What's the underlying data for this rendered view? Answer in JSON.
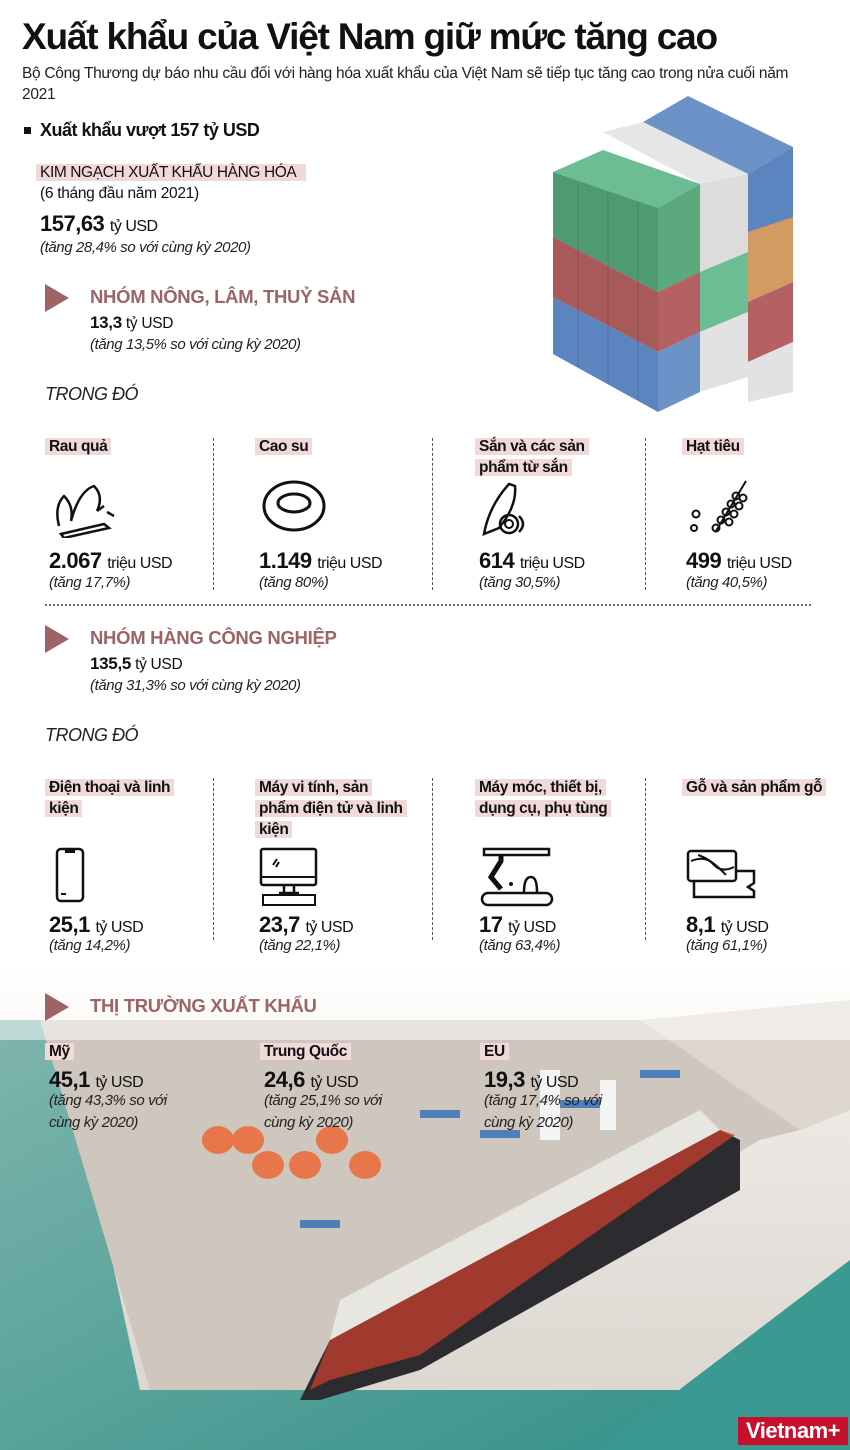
{
  "header": {
    "title": "Xuất khẩu của Việt Nam giữ mức tăng cao",
    "subtitle": "Bộ Công Thương dự báo nhu cầu đối với hàng hóa xuất khẩu của Việt Nam sẽ tiếp tục tăng cao trong nửa cuối năm 2021"
  },
  "overview": {
    "heading": "Xuất khẩu vượt 157 tỷ USD",
    "label": "KIM NGẠCH XUẤT KHẨU HÀNG HÓA",
    "period": "(6 tháng đầu năm 2021)",
    "value": "157,63",
    "unit": "tỷ USD",
    "growth": "(tăng 28,4% so với cùng kỳ 2020)"
  },
  "agri": {
    "heading": "NHÓM NÔNG, LÂM, THUỶ SẢN",
    "value": "13,3",
    "unit": "tỷ USD",
    "growth": "(tăng 13,5% so với cùng kỳ 2020)",
    "trong_do": "TRONG ĐÓ",
    "items": [
      {
        "label": "Rau quả",
        "value": "2.067",
        "unit": "triệu USD",
        "growth": "(tăng 17,7%)",
        "icon": "vegetables-icon"
      },
      {
        "label": "Cao su",
        "value": "1.149",
        "unit": "triệu USD",
        "growth": "(tăng 80%)",
        "icon": "rubber-tire-icon"
      },
      {
        "label": "Sắn và các sản phẩm từ sắn",
        "value": "614",
        "unit": "triệu USD",
        "growth": "(tăng 30,5%)",
        "icon": "cassava-icon"
      },
      {
        "label": "Hạt tiêu",
        "value": "499",
        "unit": "triệu USD",
        "growth": "(tăng 40,5%)",
        "icon": "pepper-icon"
      }
    ]
  },
  "industry": {
    "heading": "NHÓM HÀNG CÔNG NGHIỆP",
    "value": "135,5",
    "unit": "tỷ USD",
    "growth": "(tăng 31,3% so với cùng kỳ 2020)",
    "trong_do": "TRONG ĐÓ",
    "items": [
      {
        "label": "Điện thoại và linh kiện",
        "value": "25,1",
        "unit": "tỷ USD",
        "growth": "(tăng 14,2%)",
        "icon": "smartphone-icon"
      },
      {
        "label": "Máy vi tính, sản phẩm điện tử và linh kiện",
        "value": "23,7",
        "unit": "tỷ USD",
        "growth": "(tăng 22,1%)",
        "icon": "computer-icon"
      },
      {
        "label": "Máy móc, thiết bị, dụng cụ, phụ tùng",
        "value": "17",
        "unit": "tỷ USD",
        "growth": "(tăng 63,4%)",
        "icon": "robot-arm-icon"
      },
      {
        "label": "Gỗ và sản phẩm gỗ",
        "value": "8,1",
        "unit": "tỷ USD",
        "growth": "(tăng 61,1%)",
        "icon": "wood-icon"
      }
    ]
  },
  "markets": {
    "heading": "THỊ TRƯỜNG XUẤT KHẨU",
    "items": [
      {
        "label": "Mỹ",
        "value": "45,1",
        "unit": "tỷ USD",
        "growth": "(tăng 43,3% so với cùng kỳ 2020)"
      },
      {
        "label": "Trung Quốc",
        "value": "24,6",
        "unit": "tỷ USD",
        "growth": "(tăng 25,1% so với cùng kỳ 2020)"
      },
      {
        "label": "EU",
        "value": "19,3",
        "unit": "tỷ USD",
        "growth": "(tăng 17,4% so với cùng kỳ 2020)"
      }
    ]
  },
  "logo": "Vietnam+",
  "colors": {
    "accent": "#9c6464",
    "highlight": "#f2d9d9",
    "logo": "#c8102e"
  }
}
